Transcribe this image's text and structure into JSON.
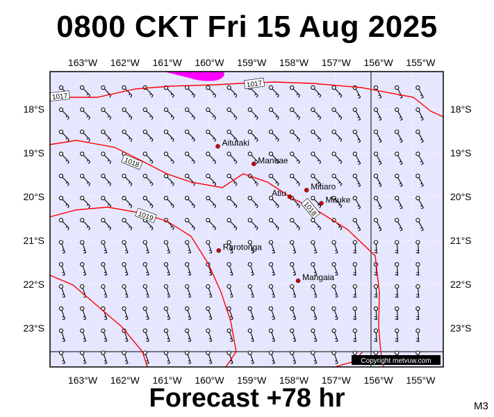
{
  "title": "0800 CKT Fri 15 Aug 2025",
  "footer": "Forecast +78 hr",
  "corner_code": "M3",
  "copyright": "Copyright metvuw.com",
  "colors": {
    "background": "#e6e6ff",
    "isobar": "#ff0000",
    "rain": "#ff00ff",
    "town_marker": "#cc0000",
    "frame": "#000000"
  },
  "lon_labels": [
    "163°W",
    "162°W",
    "161°W",
    "160°W",
    "159°W",
    "158°W",
    "157°W",
    "156°W",
    "155°W"
  ],
  "lat_labels": [
    "18°S",
    "19°S",
    "20°S",
    "21°S",
    "22°S",
    "23°S"
  ],
  "towns": [
    {
      "name": "Aitutaki",
      "lon": -159.8,
      "lat": -18.85
    },
    {
      "name": "Manuae",
      "lon": -158.95,
      "lat": -19.25
    },
    {
      "name": "Mitiaro",
      "lon": -157.7,
      "lat": -19.85
    },
    {
      "name": "Atiu",
      "lon": -158.1,
      "lat": -20.0
    },
    {
      "name": "Mauke",
      "lon": -157.35,
      "lat": -20.15
    },
    {
      "name": "Rarotonga",
      "lon": -159.78,
      "lat": -21.23
    },
    {
      "name": "Mangaia",
      "lon": -157.9,
      "lat": -21.92
    }
  ],
  "isobar_labels": [
    "1017",
    "1017",
    "1018",
    "1018",
    "1019"
  ],
  "icons": {
    "wind": "wind-barb-icon",
    "town": "town-dot-icon"
  }
}
